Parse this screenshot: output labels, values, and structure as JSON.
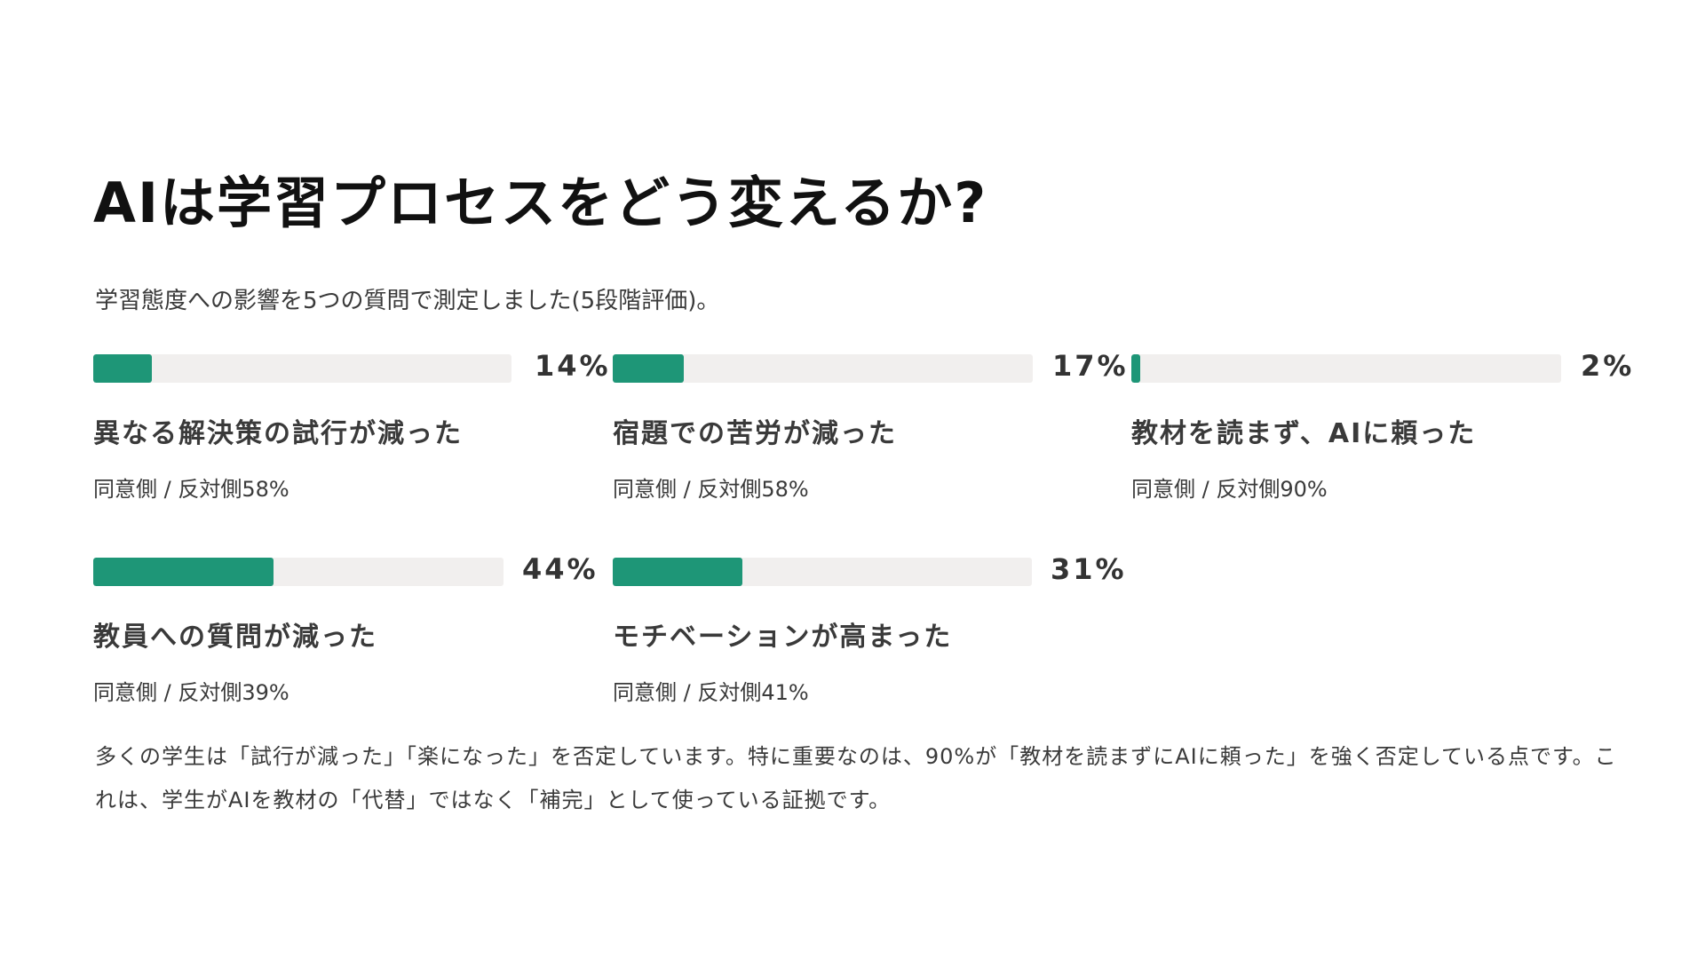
{
  "title": "AIは学習プロセスをどう変えるか?",
  "subtitle": "学習態度への影響を5つの質問で測定しました(5段階評価)。",
  "metrics": [
    {
      "percent": "14%",
      "value": 14,
      "label": "異なる解決策の試行が減った",
      "detail": "同意側 / 反対側58%"
    },
    {
      "percent": "17%",
      "value": 17,
      "label": "宿題での苦労が減った",
      "detail": "同意側 / 反対側58%"
    },
    {
      "percent": "2%",
      "value": 2,
      "label": "教材を読まず、AIに頼った",
      "detail": "同意側 / 反対側90%"
    },
    {
      "percent": "44%",
      "value": 44,
      "label": "教員への質問が減った",
      "detail": "同意側 / 反対側39%"
    },
    {
      "percent": "31%",
      "value": 31,
      "label": "モチベーションが高まった",
      "detail": "同意側 / 反対側41%"
    }
  ],
  "summary": "多くの学生は「試行が減った」「楽になった」を否定しています。特に重要なのは、90%が「教材を読まずにAIに頼った」を強く否定している点です。これは、学生がAIを教材の「代替」ではなく「補完」として使っている証拠です。",
  "colors": {
    "accent": "#1e9677",
    "track": "#f1efee"
  }
}
